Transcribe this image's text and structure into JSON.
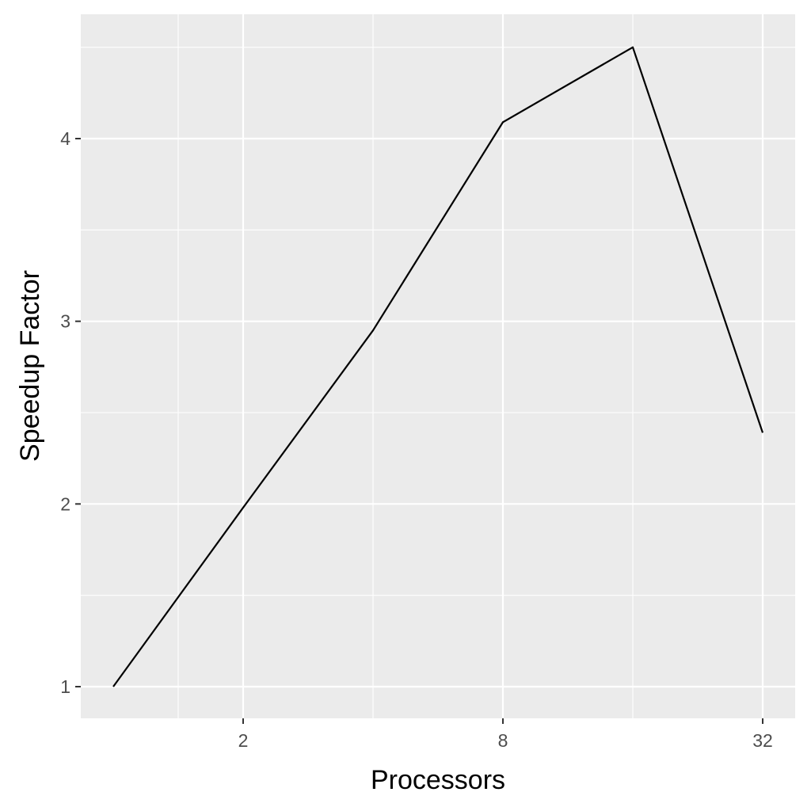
{
  "chart_data": {
    "type": "line",
    "title": "",
    "xlabel": "Processors",
    "ylabel": "Speedup Factor",
    "x_scale": "log2",
    "x": [
      1,
      2,
      4,
      8,
      16,
      32
    ],
    "series": [
      {
        "values": [
          1.0,
          1.98,
          2.95,
          4.09,
          4.5,
          2.39
        ]
      }
    ],
    "x_ticks": [
      2,
      8,
      32
    ],
    "x_tick_labels": [
      "2",
      "8",
      "32"
    ],
    "y_ticks": [
      1,
      2,
      3,
      4
    ],
    "y_tick_labels": [
      "1",
      "2",
      "3",
      "4"
    ],
    "xlim": [
      1,
      32
    ],
    "ylim": [
      1,
      4.5
    ],
    "grid": true,
    "legend": "none",
    "colors": {
      "panel_background": "#ebebeb",
      "grid_line": "#ffffff",
      "series_line": "#000000",
      "tick_text": "#4d4d4d",
      "tick_mark": "#333333",
      "axis_title": "#000000"
    }
  }
}
